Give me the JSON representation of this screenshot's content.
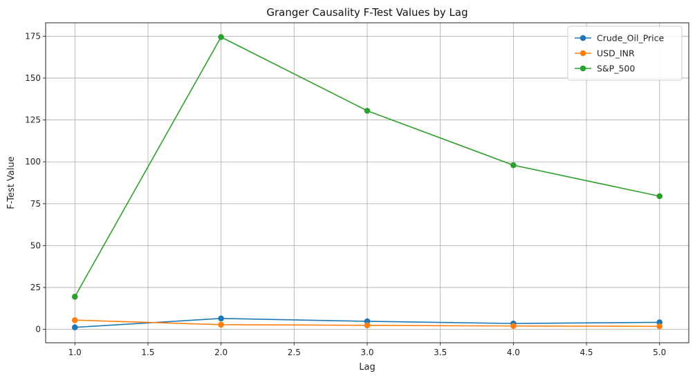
{
  "chart_data": {
    "type": "line",
    "title": "Granger Causality F-Test Values by Lag",
    "xlabel": "Lag",
    "ylabel": "F-Test Value",
    "x": [
      1,
      2,
      3,
      4,
      5
    ],
    "xlim": [
      0.8,
      5.2
    ],
    "ylim": [
      -8,
      183
    ],
    "xticks": [
      1.0,
      1.5,
      2.0,
      2.5,
      3.0,
      3.5,
      4.0,
      4.5,
      5.0
    ],
    "xtick_labels": [
      "1.0",
      "1.5",
      "2.0",
      "2.5",
      "3.0",
      "3.5",
      "4.0",
      "4.5",
      "5.0"
    ],
    "yticks": [
      0,
      25,
      50,
      75,
      100,
      125,
      150,
      175
    ],
    "ytick_labels": [
      "0",
      "25",
      "50",
      "75",
      "100",
      "125",
      "150",
      "175"
    ],
    "grid": true,
    "legend_position": "top-right",
    "series": [
      {
        "name": "Crude_Oil_Price",
        "color": "#1f77b4",
        "values": [
          1.2,
          6.5,
          4.8,
          3.5,
          4.2
        ]
      },
      {
        "name": "USD_INR",
        "color": "#ff7f0e",
        "values": [
          5.5,
          2.8,
          2.4,
          2.0,
          1.8
        ]
      },
      {
        "name": "S&P_500",
        "color": "#2ca02c",
        "values": [
          19.5,
          174.5,
          130.5,
          98.0,
          79.5
        ]
      }
    ]
  }
}
